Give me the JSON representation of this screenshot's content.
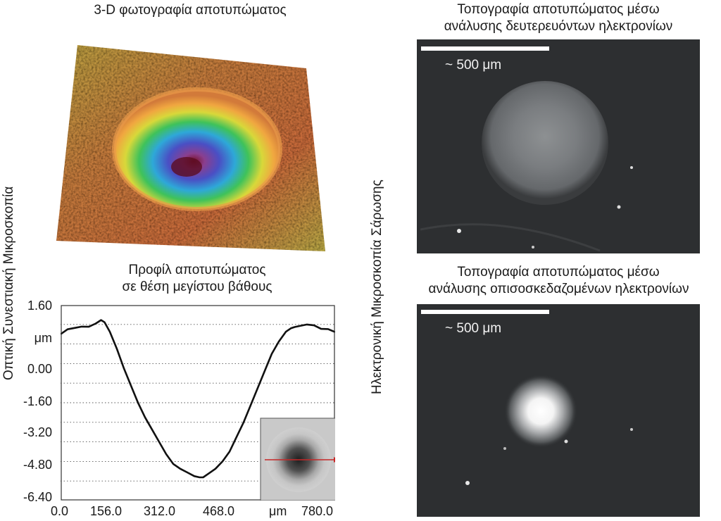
{
  "optical": {
    "side_label": "Οπτική Συνεστιακή Μικροσκοπία",
    "photo_3d_caption": "3-D φωτογραφία αποτυπώματος"
  },
  "profile": {
    "caption_line1": "Προφίλ αποτυπώματος",
    "caption_line2": "σε θέση μεγίστου βάθους"
  },
  "sem": {
    "side_label": "Ηλεκτρονική Μικροσκοπία Σάρωσης",
    "top_caption_line1": "Τοπογραφία αποτυπώματος μέσω",
    "top_caption_line2": "ανάλυσης δευτερευόντων ηλεκτρονίων",
    "bottom_caption_line1": "Τοπογραφία αποτυπώματος μέσω",
    "bottom_caption_line2": "ανάλυσης οπισοσκεδαζομένων ηλεκτρονίων",
    "scale_label": "~ 500 μm"
  },
  "chart_data": {
    "type": "line",
    "title": "",
    "xlabel": "μm",
    "ylabel": "μm",
    "xlim": [
      0,
      780
    ],
    "ylim": [
      -6.4,
      1.6
    ],
    "x_ticks": [
      "0.0",
      "156.0",
      "312.0",
      "468.0",
      "780.0"
    ],
    "y_ticks": [
      "1.60",
      "0.00",
      "-1.60",
      "-3.20",
      "-4.80",
      "-6.40"
    ],
    "grid": "horizontal-dotted",
    "series": [
      {
        "x": [
          0,
          20,
          40,
          60,
          80,
          100,
          115,
          125,
          140,
          160,
          180,
          200,
          220,
          240,
          260,
          280,
          300,
          320,
          340,
          360,
          380,
          395,
          405,
          420,
          440,
          460,
          480,
          500,
          520,
          540,
          560,
          580,
          600,
          620,
          640,
          655,
          665,
          680,
          700,
          720,
          740,
          760,
          780
        ],
        "y": [
          0.4,
          0.5,
          0.55,
          0.7,
          0.8,
          0.95,
          1.0,
          0.8,
          0.5,
          -0.2,
          -1.0,
          -1.7,
          -2.4,
          -3.0,
          -3.5,
          -4.0,
          -4.5,
          -4.9,
          -5.1,
          -5.25,
          -5.4,
          -5.45,
          -5.45,
          -5.3,
          -5.1,
          -4.8,
          -4.4,
          -3.8,
          -3.2,
          -2.5,
          -1.8,
          -1.1,
          -0.4,
          0.1,
          0.5,
          0.75,
          0.8,
          0.75,
          0.7,
          0.65,
          0.6,
          0.7,
          0.6
        ]
      }
    ],
    "inset": "top-view image of indentation with red line at the profile position"
  }
}
